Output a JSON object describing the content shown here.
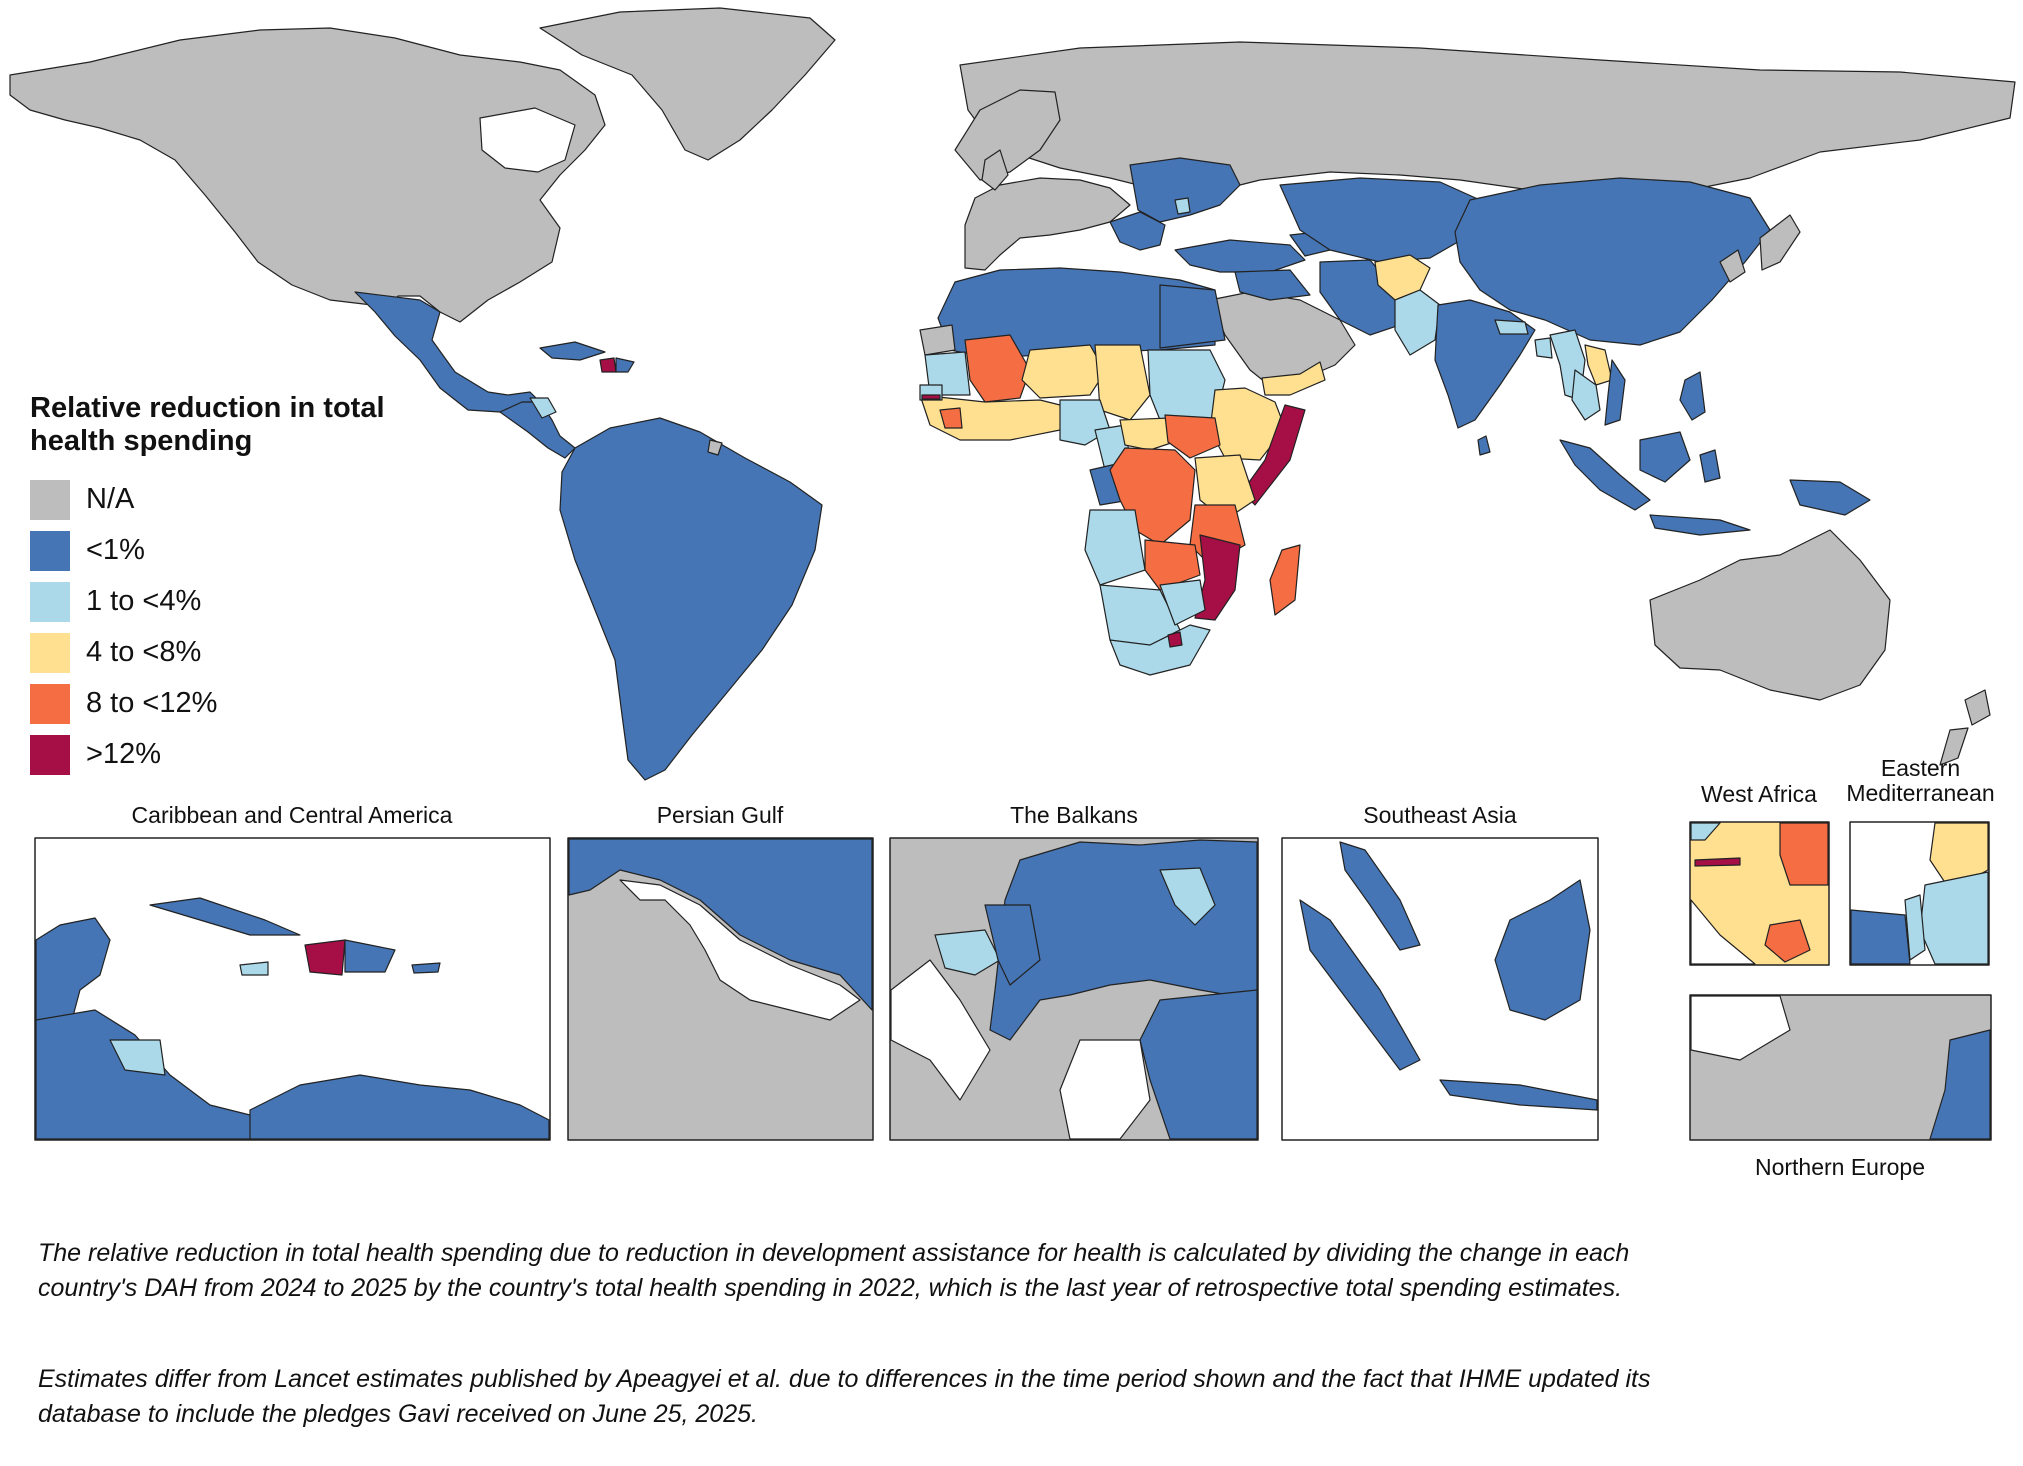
{
  "colors": {
    "na": "#bdbdbd",
    "lt1": "#4575b4",
    "r1to4": "#abd9e9",
    "r4to8": "#fee090",
    "r8to12": "#f46d43",
    "gt12": "#a50f46",
    "ocean": "#ffffff",
    "border": "#222222"
  },
  "legend": {
    "title": "Relative reduction in total health spending",
    "items": [
      {
        "label": "N/A",
        "color": "#bdbdbd"
      },
      {
        "label": "<1%",
        "color": "#4575b4"
      },
      {
        "label": "1 to <4%",
        "color": "#abd9e9"
      },
      {
        "label": "4 to <8%",
        "color": "#fee090"
      },
      {
        "label": "8 to <12%",
        "color": "#f46d43"
      },
      {
        "label": ">12%",
        "color": "#a50f46"
      }
    ]
  },
  "insets": {
    "caribbean": "Caribbean and Central America",
    "gulf": "Persian Gulf",
    "balkans": "The Balkans",
    "seasia": "Southeast Asia",
    "west_africa": "West Africa",
    "east_med": "Eastern Mediterranean",
    "north_europe": "Northern Europe"
  },
  "caption": {
    "p1": "The relative reduction in total health spending due to reduction in development assistance for health is calculated by dividing the change in each country's DAH from 2024 to 2025 by the country's total health spending in 2022, which is the last year of retrospective total spending estimates.",
    "p2": "Estimates differ from Lancet estimates published by Apeagyei et al. due to differences in the time period shown and the fact that IHME updated its database to include the pledges Gavi received on June 25, 2025."
  }
}
